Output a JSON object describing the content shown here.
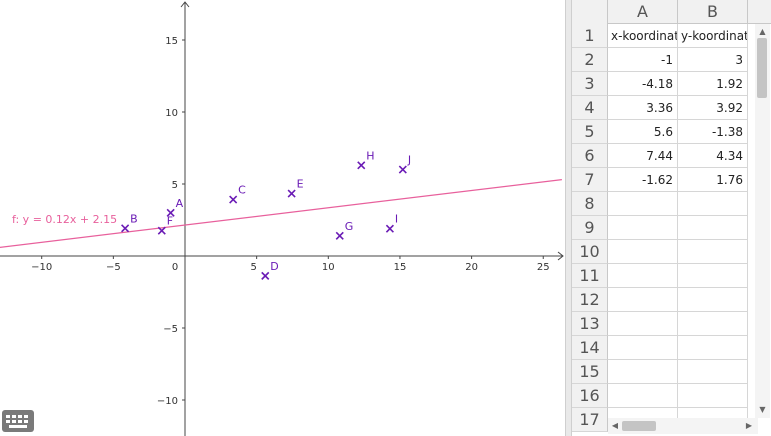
{
  "graphics": {
    "x_tick_labels": [
      "−10",
      "−5",
      "0",
      "5",
      "10",
      "15",
      "20",
      "25"
    ],
    "y_tick_labels": [
      "15",
      "10",
      "5",
      "−5",
      "−10"
    ],
    "points": [
      {
        "name": "A",
        "x": -1,
        "y": 3
      },
      {
        "name": "B",
        "x": -4.18,
        "y": 1.92
      },
      {
        "name": "C",
        "x": 3.36,
        "y": 3.92
      },
      {
        "name": "D",
        "x": 5.6,
        "y": -1.38
      },
      {
        "name": "E",
        "x": 7.44,
        "y": 4.34
      },
      {
        "name": "F",
        "x": -1.62,
        "y": 1.76
      },
      {
        "name": "G",
        "x": 10.8,
        "y": 1.4
      },
      {
        "name": "H",
        "x": 12.3,
        "y": 6.3
      },
      {
        "name": "I",
        "x": 14.3,
        "y": 1.9
      },
      {
        "name": "J",
        "x": 15.2,
        "y": 6.0
      }
    ],
    "function": {
      "label": "f: y = 0.12x + 2.15",
      "slope": 0.12,
      "intercept": 2.15
    },
    "colors": {
      "points": "#6a1bb5",
      "function": "#e8609c"
    }
  },
  "spreadsheet": {
    "columns": [
      "A",
      "B"
    ],
    "rows": [
      {
        "n": "1",
        "a": "x-koordinate",
        "b": "y-koordinate"
      },
      {
        "n": "2",
        "a": "-1",
        "b": "3"
      },
      {
        "n": "3",
        "a": "-4.18",
        "b": "1.92"
      },
      {
        "n": "4",
        "a": "3.36",
        "b": "3.92"
      },
      {
        "n": "5",
        "a": "5.6",
        "b": "-1.38"
      },
      {
        "n": "6",
        "a": "7.44",
        "b": "4.34"
      },
      {
        "n": "7",
        "a": "-1.62",
        "b": "1.76"
      },
      {
        "n": "8",
        "a": "",
        "b": ""
      },
      {
        "n": "9",
        "a": "",
        "b": ""
      },
      {
        "n": "10",
        "a": "",
        "b": ""
      },
      {
        "n": "11",
        "a": "",
        "b": ""
      },
      {
        "n": "12",
        "a": "",
        "b": ""
      },
      {
        "n": "13",
        "a": "",
        "b": ""
      },
      {
        "n": "14",
        "a": "",
        "b": ""
      },
      {
        "n": "15",
        "a": "",
        "b": ""
      },
      {
        "n": "16",
        "a": "",
        "b": ""
      },
      {
        "n": "17",
        "a": "",
        "b": ""
      }
    ]
  },
  "icons": {
    "keyboard": "keyboard-icon"
  }
}
